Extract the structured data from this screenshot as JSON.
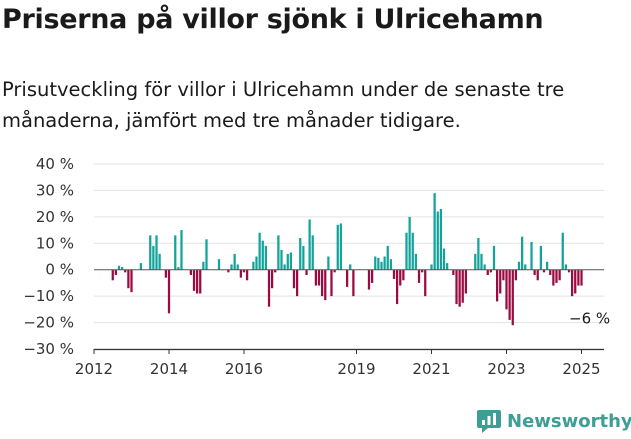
{
  "title": "Priserna på villor sjönk i Ulricehamn",
  "subtitle": "Prisutveckling för villor i Ulricehamn under de senaste tre månaderna, jämfört med tre månader tidigare.",
  "brand": {
    "name": "Newsworthy",
    "color": "#3d9e96",
    "icon": "newsworthy-logo-icon"
  },
  "colors": {
    "positive": "#12a39a",
    "negative": "#9c0a42",
    "grid": "#e3e3e3",
    "axis": "#333333"
  },
  "chart_data": {
    "type": "bar",
    "title": "Priserna på villor sjönk i Ulricehamn",
    "ylabel": "",
    "xlabel": "",
    "ylim": [
      -30,
      40
    ],
    "yticks": [
      40,
      30,
      20,
      10,
      0,
      -10,
      -20,
      -30
    ],
    "ytick_labels": [
      "40 %",
      "30 %",
      "20 %",
      "10 %",
      "0 %",
      "−10 %",
      "−20 %",
      "−30 %"
    ],
    "xticks": [
      2012,
      2014,
      2016,
      2019,
      2021,
      2023,
      2025
    ],
    "xtick_labels": [
      "2012",
      "2014",
      "2016",
      "2019",
      "2021",
      "2023",
      "2025"
    ],
    "xlim": [
      2012,
      2025.6
    ],
    "grid": true,
    "legend": "none",
    "annotation": {
      "text": "−6 %",
      "x": 2025.2,
      "y": -6
    },
    "bars": [
      {
        "x": 2012.5,
        "y": -4
      },
      {
        "x": 2012.583,
        "y": -2
      },
      {
        "x": 2012.667,
        "y": 1.5
      },
      {
        "x": 2012.75,
        "y": 1
      },
      {
        "x": 2012.833,
        "y": -1
      },
      {
        "x": 2012.917,
        "y": -7
      },
      {
        "x": 2013.0,
        "y": -8.5
      },
      {
        "x": 2013.25,
        "y": 2.5
      },
      {
        "x": 2013.333,
        "y": 0
      },
      {
        "x": 2013.5,
        "y": 13
      },
      {
        "x": 2013.583,
        "y": 9
      },
      {
        "x": 2013.667,
        "y": 13
      },
      {
        "x": 2013.75,
        "y": 6
      },
      {
        "x": 2013.917,
        "y": -3
      },
      {
        "x": 2014.0,
        "y": -16.5
      },
      {
        "x": 2014.167,
        "y": 13
      },
      {
        "x": 2014.25,
        "y": 1
      },
      {
        "x": 2014.333,
        "y": 15
      },
      {
        "x": 2014.583,
        "y": -2
      },
      {
        "x": 2014.667,
        "y": -8
      },
      {
        "x": 2014.75,
        "y": -9
      },
      {
        "x": 2014.833,
        "y": -9
      },
      {
        "x": 2014.917,
        "y": 3
      },
      {
        "x": 2015.0,
        "y": 11.5
      },
      {
        "x": 2015.333,
        "y": 4
      },
      {
        "x": 2015.583,
        "y": -1
      },
      {
        "x": 2015.667,
        "y": 2
      },
      {
        "x": 2015.75,
        "y": 6
      },
      {
        "x": 2015.833,
        "y": 2
      },
      {
        "x": 2015.917,
        "y": -3
      },
      {
        "x": 2016.0,
        "y": -1
      },
      {
        "x": 2016.083,
        "y": -4
      },
      {
        "x": 2016.25,
        "y": 3
      },
      {
        "x": 2016.333,
        "y": 5
      },
      {
        "x": 2016.417,
        "y": 14
      },
      {
        "x": 2016.5,
        "y": 11
      },
      {
        "x": 2016.583,
        "y": 9
      },
      {
        "x": 2016.667,
        "y": -14
      },
      {
        "x": 2016.75,
        "y": -7
      },
      {
        "x": 2016.833,
        "y": -1
      },
      {
        "x": 2016.917,
        "y": 13
      },
      {
        "x": 2017.0,
        "y": 7.5
      },
      {
        "x": 2017.083,
        "y": 2
      },
      {
        "x": 2017.167,
        "y": 6
      },
      {
        "x": 2017.25,
        "y": 6.5
      },
      {
        "x": 2017.333,
        "y": -7
      },
      {
        "x": 2017.417,
        "y": -10
      },
      {
        "x": 2017.5,
        "y": 12
      },
      {
        "x": 2017.583,
        "y": 9
      },
      {
        "x": 2017.667,
        "y": -2
      },
      {
        "x": 2017.75,
        "y": 19
      },
      {
        "x": 2017.833,
        "y": 13
      },
      {
        "x": 2017.917,
        "y": -6
      },
      {
        "x": 2018.0,
        "y": -6
      },
      {
        "x": 2018.083,
        "y": -10
      },
      {
        "x": 2018.167,
        "y": -11.5
      },
      {
        "x": 2018.25,
        "y": 5
      },
      {
        "x": 2018.333,
        "y": -10
      },
      {
        "x": 2018.417,
        "y": -1
      },
      {
        "x": 2018.5,
        "y": 17
      },
      {
        "x": 2018.583,
        "y": 17.5
      },
      {
        "x": 2018.667,
        "y": 0
      },
      {
        "x": 2018.75,
        "y": -6.5
      },
      {
        "x": 2018.833,
        "y": 2
      },
      {
        "x": 2018.917,
        "y": -10
      },
      {
        "x": 2019.333,
        "y": -7.5
      },
      {
        "x": 2019.417,
        "y": -5
      },
      {
        "x": 2019.5,
        "y": 5
      },
      {
        "x": 2019.583,
        "y": 4.5
      },
      {
        "x": 2019.667,
        "y": 3
      },
      {
        "x": 2019.75,
        "y": 5
      },
      {
        "x": 2019.833,
        "y": 9
      },
      {
        "x": 2019.917,
        "y": 4
      },
      {
        "x": 2020.0,
        "y": -3.5
      },
      {
        "x": 2020.083,
        "y": -13
      },
      {
        "x": 2020.167,
        "y": -6
      },
      {
        "x": 2020.25,
        "y": -4
      },
      {
        "x": 2020.333,
        "y": 14
      },
      {
        "x": 2020.417,
        "y": 20
      },
      {
        "x": 2020.5,
        "y": 14
      },
      {
        "x": 2020.583,
        "y": 6
      },
      {
        "x": 2020.667,
        "y": -5
      },
      {
        "x": 2020.75,
        "y": -1
      },
      {
        "x": 2020.833,
        "y": -10
      },
      {
        "x": 2020.917,
        "y": 0
      },
      {
        "x": 2021.0,
        "y": 2
      },
      {
        "x": 2021.083,
        "y": 29
      },
      {
        "x": 2021.167,
        "y": 22
      },
      {
        "x": 2021.25,
        "y": 23
      },
      {
        "x": 2021.333,
        "y": 8
      },
      {
        "x": 2021.417,
        "y": 2.5
      },
      {
        "x": 2021.5,
        "y": 0
      },
      {
        "x": 2021.583,
        "y": -2
      },
      {
        "x": 2021.667,
        "y": -13
      },
      {
        "x": 2021.75,
        "y": -14
      },
      {
        "x": 2021.833,
        "y": -12.5
      },
      {
        "x": 2021.917,
        "y": -9
      },
      {
        "x": 2022.0,
        "y": 0
      },
      {
        "x": 2022.167,
        "y": 6
      },
      {
        "x": 2022.25,
        "y": 12
      },
      {
        "x": 2022.333,
        "y": 6
      },
      {
        "x": 2022.417,
        "y": 2
      },
      {
        "x": 2022.5,
        "y": -2
      },
      {
        "x": 2022.583,
        "y": -1
      },
      {
        "x": 2022.667,
        "y": 9
      },
      {
        "x": 2022.75,
        "y": -12
      },
      {
        "x": 2022.833,
        "y": -9
      },
      {
        "x": 2022.917,
        "y": -4
      },
      {
        "x": 2023.0,
        "y": -15
      },
      {
        "x": 2023.083,
        "y": -19
      },
      {
        "x": 2023.167,
        "y": -21
      },
      {
        "x": 2023.25,
        "y": -4
      },
      {
        "x": 2023.333,
        "y": 3
      },
      {
        "x": 2023.417,
        "y": 12.5
      },
      {
        "x": 2023.5,
        "y": 2
      },
      {
        "x": 2023.667,
        "y": 10.5
      },
      {
        "x": 2023.75,
        "y": -2
      },
      {
        "x": 2023.833,
        "y": -4
      },
      {
        "x": 2023.917,
        "y": 9
      },
      {
        "x": 2024.0,
        "y": -1
      },
      {
        "x": 2024.083,
        "y": 3
      },
      {
        "x": 2024.167,
        "y": -2
      },
      {
        "x": 2024.25,
        "y": -6
      },
      {
        "x": 2024.333,
        "y": -5
      },
      {
        "x": 2024.417,
        "y": -4
      },
      {
        "x": 2024.5,
        "y": 14
      },
      {
        "x": 2024.583,
        "y": 2
      },
      {
        "x": 2024.667,
        "y": -1
      },
      {
        "x": 2024.75,
        "y": -10
      },
      {
        "x": 2024.833,
        "y": -9
      },
      {
        "x": 2024.917,
        "y": -6
      },
      {
        "x": 2025.0,
        "y": -6
      }
    ]
  }
}
